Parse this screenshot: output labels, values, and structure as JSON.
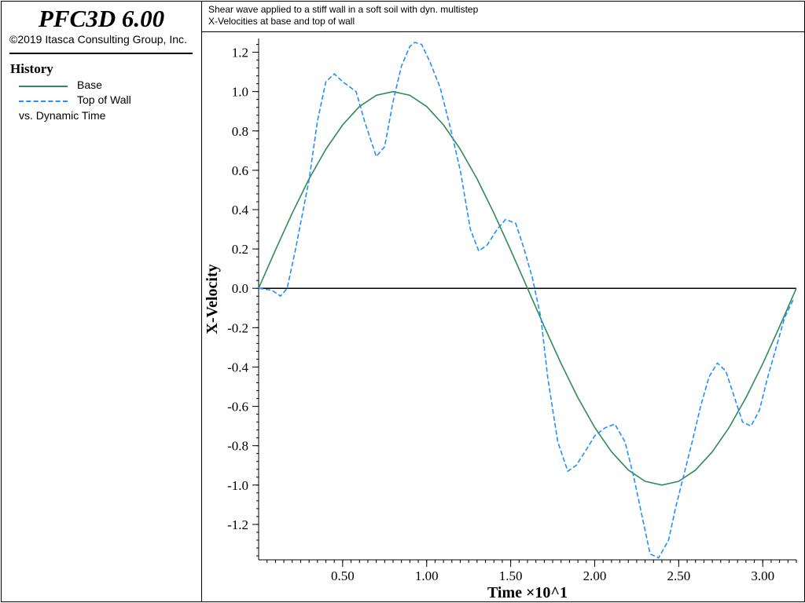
{
  "sidebar": {
    "brand": "PFC3D 6.00",
    "copyright": "©2019 Itasca Consulting Group, Inc.",
    "history_title": "History",
    "legend": [
      {
        "label": "Base",
        "color": "#2e8b57",
        "style": "solid"
      },
      {
        "label": "Top of Wall",
        "color": "#1e90ff",
        "style": "dashed"
      }
    ],
    "vs_label": "vs. Dynamic Time"
  },
  "plot_title": {
    "line1": "Shear wave applied to a stiff wall in a soft soil with dyn. multistep",
    "line2": "X-Velocities at base and top of wall"
  },
  "chart_data": {
    "type": "line",
    "xlabel": "Time ×10^1",
    "ylabel": "X-Velocity",
    "xlim": [
      0.0,
      3.2
    ],
    "ylim": [
      -1.38,
      1.27
    ],
    "xticks": [
      "0.50",
      "1.00",
      "1.50",
      "2.00",
      "2.50",
      "3.00"
    ],
    "xtick_values": [
      0.5,
      1.0,
      1.5,
      2.0,
      2.5,
      3.0
    ],
    "yticks": [
      "1.2",
      "1.0",
      "0.8",
      "0.6",
      "0.4",
      "0.2",
      "0.0",
      "-0.2",
      "-0.4",
      "-0.6",
      "-0.8",
      "-1.0",
      "-1.2"
    ],
    "ytick_values": [
      1.2,
      1.0,
      0.8,
      0.6,
      0.4,
      0.2,
      0.0,
      -0.2,
      -0.4,
      -0.6,
      -0.8,
      -1.0,
      -1.2
    ],
    "zero_line": true,
    "series": [
      {
        "name": "Base",
        "color": "#2e8b57",
        "style": "solid",
        "x": [
          0.0,
          0.1,
          0.2,
          0.3,
          0.4,
          0.5,
          0.6,
          0.7,
          0.8,
          0.9,
          1.0,
          1.1,
          1.2,
          1.3,
          1.4,
          1.5,
          1.6,
          1.7,
          1.8,
          1.9,
          2.0,
          2.1,
          2.2,
          2.3,
          2.4,
          2.5,
          2.6,
          2.7,
          2.8,
          2.9,
          3.0,
          3.1,
          3.2
        ],
        "y": [
          0.0,
          0.195,
          0.383,
          0.556,
          0.707,
          0.831,
          0.924,
          0.981,
          1.0,
          0.981,
          0.924,
          0.831,
          0.707,
          0.556,
          0.383,
          0.195,
          0.0,
          -0.195,
          -0.383,
          -0.556,
          -0.707,
          -0.831,
          -0.924,
          -0.981,
          -1.0,
          -0.981,
          -0.924,
          -0.831,
          -0.707,
          -0.556,
          -0.383,
          -0.195,
          0.0
        ]
      },
      {
        "name": "Top of Wall",
        "color": "#1e90ff",
        "style": "dashed",
        "x": [
          0.0,
          0.08,
          0.13,
          0.17,
          0.22,
          0.3,
          0.35,
          0.4,
          0.45,
          0.5,
          0.58,
          0.63,
          0.7,
          0.75,
          0.8,
          0.85,
          0.9,
          0.93,
          0.97,
          1.02,
          1.08,
          1.14,
          1.2,
          1.26,
          1.31,
          1.36,
          1.42,
          1.47,
          1.53,
          1.58,
          1.63,
          1.68,
          1.72,
          1.78,
          1.84,
          1.89,
          1.95,
          2.0,
          2.06,
          2.12,
          2.18,
          2.23,
          2.28,
          2.33,
          2.38,
          2.44,
          2.48,
          2.53,
          2.58,
          2.63,
          2.68,
          2.73,
          2.78,
          2.83,
          2.88,
          2.93,
          2.98,
          3.03,
          3.08,
          3.13,
          3.18
        ],
        "y": [
          0.0,
          -0.01,
          -0.04,
          0.0,
          0.2,
          0.55,
          0.85,
          1.05,
          1.09,
          1.05,
          1.0,
          0.85,
          0.67,
          0.72,
          0.95,
          1.13,
          1.23,
          1.25,
          1.24,
          1.15,
          1.02,
          0.82,
          0.6,
          0.3,
          0.19,
          0.22,
          0.3,
          0.35,
          0.33,
          0.2,
          0.05,
          -0.15,
          -0.45,
          -0.78,
          -0.93,
          -0.9,
          -0.82,
          -0.75,
          -0.71,
          -0.69,
          -0.78,
          -0.95,
          -1.15,
          -1.35,
          -1.37,
          -1.28,
          -1.12,
          -0.95,
          -0.78,
          -0.6,
          -0.45,
          -0.38,
          -0.42,
          -0.55,
          -0.68,
          -0.7,
          -0.62,
          -0.45,
          -0.3,
          -0.15,
          -0.06
        ]
      }
    ]
  }
}
